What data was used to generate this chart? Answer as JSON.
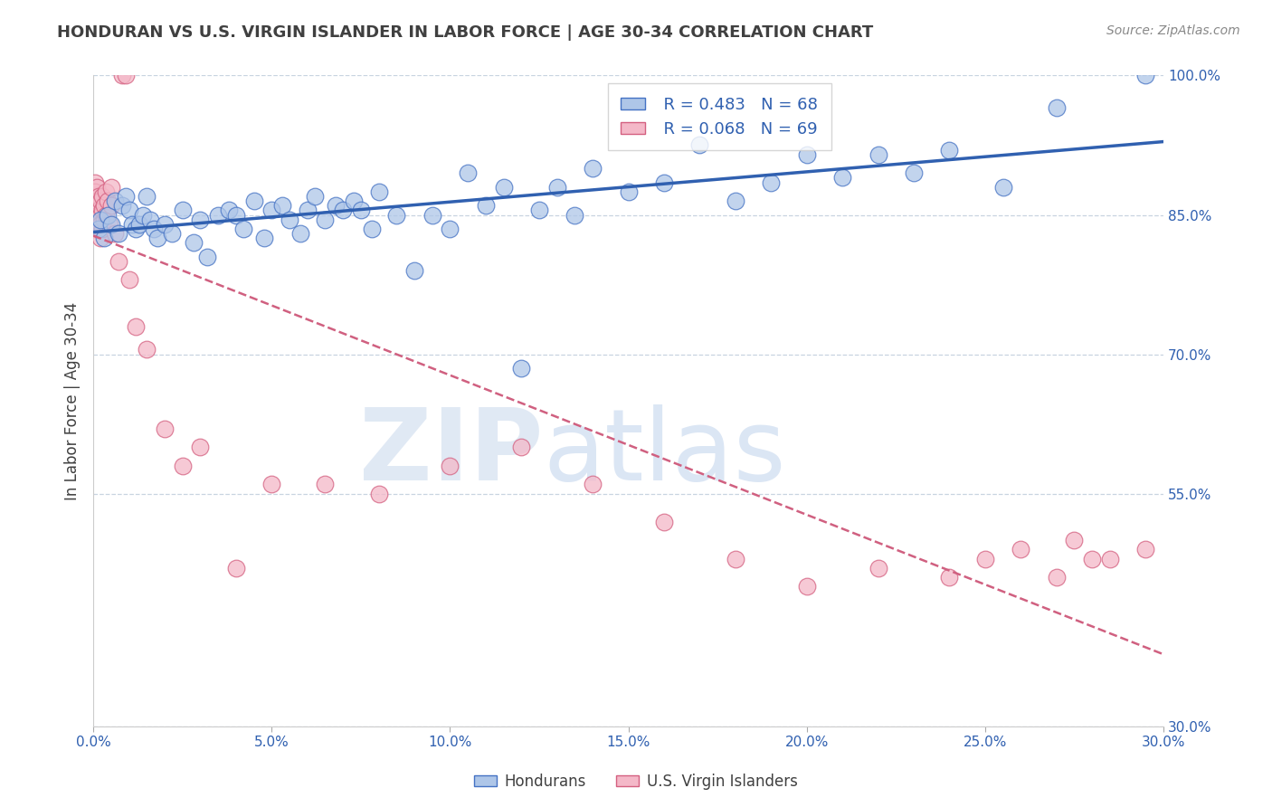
{
  "title": "HONDURAN VS U.S. VIRGIN ISLANDER IN LABOR FORCE | AGE 30-34 CORRELATION CHART",
  "source": "Source: ZipAtlas.com",
  "ylabel": "In Labor Force | Age 30-34",
  "xlim": [
    0.0,
    30.0
  ],
  "ylim": [
    30.0,
    100.0
  ],
  "xticks": [
    0.0,
    5.0,
    10.0,
    15.0,
    20.0,
    25.0,
    30.0
  ],
  "ytick_vals": [
    30.0,
    55.0,
    70.0,
    85.0,
    100.0
  ],
  "ytick_labels": [
    "30.0%",
    "55.0%",
    "70.0%",
    "85.0%",
    "100.0%"
  ],
  "xtick_labels": [
    "0.0%",
    "5.0%",
    "10.0%",
    "15.0%",
    "20.0%",
    "25.0%",
    "30.0%"
  ],
  "blue_fill": "#aec6e8",
  "blue_edge": "#4472c4",
  "pink_fill": "#f4b8c8",
  "pink_edge": "#d46080",
  "blue_line": "#3060b0",
  "pink_line": "#d06080",
  "legend_label_blue": "Hondurans",
  "legend_label_pink": "U.S. Virgin Islanders",
  "legend_R_blue": "R = 0.483",
  "legend_N_blue": "N = 68",
  "legend_R_pink": "R = 0.068",
  "legend_N_pink": "N = 69",
  "watermark_zip": "ZIP",
  "watermark_atlas": "atlas",
  "grid_color": "#c8d4e0",
  "background_color": "#ffffff",
  "title_color": "#404040",
  "blue_scatter": {
    "x": [
      0.15,
      0.2,
      0.3,
      0.4,
      0.5,
      0.6,
      0.7,
      0.8,
      0.9,
      1.0,
      1.1,
      1.2,
      1.3,
      1.4,
      1.5,
      1.6,
      1.7,
      1.8,
      2.0,
      2.2,
      2.5,
      2.8,
      3.0,
      3.2,
      3.5,
      3.8,
      4.0,
      4.2,
      4.5,
      4.8,
      5.0,
      5.3,
      5.5,
      5.8,
      6.0,
      6.2,
      6.5,
      6.8,
      7.0,
      7.3,
      7.5,
      7.8,
      8.0,
      8.5,
      9.0,
      9.5,
      10.0,
      10.5,
      11.0,
      11.5,
      12.0,
      12.5,
      13.0,
      13.5,
      14.0,
      15.0,
      16.0,
      17.0,
      18.0,
      19.0,
      20.0,
      21.0,
      22.0,
      23.0,
      24.0,
      25.5,
      27.0,
      29.5
    ],
    "y": [
      83.5,
      84.5,
      82.5,
      85.0,
      84.0,
      86.5,
      83.0,
      86.0,
      87.0,
      85.5,
      84.0,
      83.5,
      84.0,
      85.0,
      87.0,
      84.5,
      83.5,
      82.5,
      84.0,
      83.0,
      85.5,
      82.0,
      84.5,
      80.5,
      85.0,
      85.5,
      85.0,
      83.5,
      86.5,
      82.5,
      85.5,
      86.0,
      84.5,
      83.0,
      85.5,
      87.0,
      84.5,
      86.0,
      85.5,
      86.5,
      85.5,
      83.5,
      87.5,
      85.0,
      79.0,
      85.0,
      83.5,
      89.5,
      86.0,
      88.0,
      68.5,
      85.5,
      88.0,
      85.0,
      90.0,
      87.5,
      88.5,
      92.5,
      86.5,
      88.5,
      91.5,
      89.0,
      91.5,
      89.5,
      92.0,
      88.0,
      96.5,
      100.0
    ]
  },
  "pink_scatter": {
    "x": [
      0.0,
      0.0,
      0.0,
      0.0,
      0.0,
      0.05,
      0.05,
      0.05,
      0.05,
      0.05,
      0.05,
      0.05,
      0.05,
      0.05,
      0.05,
      0.05,
      0.1,
      0.1,
      0.1,
      0.1,
      0.1,
      0.15,
      0.15,
      0.15,
      0.15,
      0.2,
      0.2,
      0.2,
      0.2,
      0.25,
      0.25,
      0.25,
      0.3,
      0.3,
      0.35,
      0.35,
      0.4,
      0.45,
      0.5,
      0.5,
      0.6,
      0.7,
      0.8,
      0.9,
      1.0,
      1.2,
      1.5,
      2.0,
      2.5,
      3.0,
      4.0,
      5.0,
      6.5,
      8.0,
      10.0,
      12.0,
      14.0,
      16.0,
      18.0,
      20.0,
      22.0,
      24.0,
      25.0,
      26.0,
      27.0,
      27.5,
      28.0,
      28.5,
      29.5
    ],
    "y": [
      86.0,
      87.5,
      85.5,
      84.5,
      86.5,
      88.5,
      87.0,
      86.0,
      85.5,
      84.5,
      86.0,
      87.5,
      85.0,
      84.0,
      83.5,
      85.5,
      88.0,
      86.0,
      84.5,
      85.0,
      86.5,
      87.0,
      85.5,
      84.0,
      83.5,
      86.5,
      85.0,
      84.0,
      82.5,
      85.5,
      87.0,
      83.5,
      86.0,
      84.5,
      87.5,
      85.0,
      86.5,
      84.0,
      88.0,
      86.0,
      83.0,
      80.0,
      100.0,
      100.0,
      78.0,
      73.0,
      70.5,
      62.0,
      58.0,
      60.0,
      47.0,
      56.0,
      56.0,
      55.0,
      58.0,
      60.0,
      56.0,
      52.0,
      48.0,
      45.0,
      47.0,
      46.0,
      48.0,
      49.0,
      46.0,
      50.0,
      48.0,
      48.0,
      49.0
    ]
  }
}
